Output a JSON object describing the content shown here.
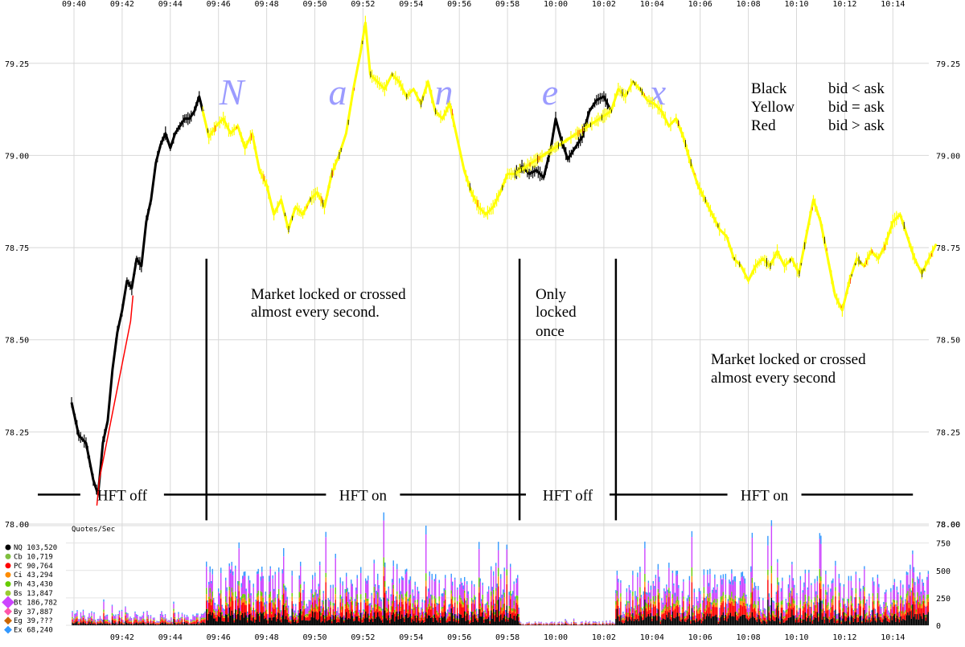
{
  "chart_data": [
    {
      "type": "line",
      "name_watermark": "Nanex",
      "x_ticks_top": [
        "09:40",
        "09:42",
        "09:44",
        "09:46",
        "09:48",
        "09:50",
        "09:52",
        "09:54",
        "09:56",
        "09:58",
        "10:00",
        "10:02",
        "10:04",
        "10:06",
        "10:08",
        "10:10",
        "10:12",
        "10:14"
      ],
      "y_ticks": [
        "79.25",
        "79.00",
        "78.75",
        "78.50",
        "78.25",
        "78.00"
      ],
      "ylim": [
        78.0,
        79.4
      ],
      "xlim_minutes": [
        -0.5,
        35.5
      ],
      "series": [
        {
          "name": "Black",
          "color": "#000000",
          "points": [
            [
              -0.1,
              78.33
            ],
            [
              0.2,
              78.24
            ],
            [
              0.5,
              78.22
            ],
            [
              0.8,
              78.12
            ],
            [
              1.0,
              78.08
            ],
            [
              1.2,
              78.22
            ],
            [
              1.4,
              78.28
            ],
            [
              1.6,
              78.42
            ],
            [
              1.8,
              78.52
            ],
            [
              2.0,
              78.58
            ],
            [
              2.2,
              78.66
            ],
            [
              2.4,
              78.64
            ],
            [
              2.6,
              78.72
            ],
            [
              2.8,
              78.7
            ],
            [
              3.0,
              78.82
            ],
            [
              3.2,
              78.88
            ],
            [
              3.4,
              78.98
            ],
            [
              3.6,
              79.03
            ],
            [
              3.8,
              79.06
            ],
            [
              4.0,
              79.02
            ],
            [
              4.2,
              79.06
            ],
            [
              4.4,
              79.08
            ],
            [
              4.6,
              79.1
            ],
            [
              4.8,
              79.1
            ],
            [
              5.0,
              79.12
            ],
            [
              5.2,
              79.16
            ],
            [
              5.35,
              79.12
            ]
          ]
        },
        {
          "name": "Black",
          "color": "#000000",
          "points": [
            [
              18.3,
              78.95
            ],
            [
              18.6,
              78.97
            ],
            [
              18.9,
              78.95
            ],
            [
              19.2,
              78.96
            ],
            [
              19.5,
              78.94
            ],
            [
              19.8,
              79.02
            ],
            [
              20.0,
              79.1
            ],
            [
              20.2,
              79.05
            ],
            [
              20.5,
              78.99
            ],
            [
              20.8,
              79.02
            ],
            [
              21.1,
              79.05
            ],
            [
              21.4,
              79.12
            ],
            [
              21.7,
              79.15
            ],
            [
              22.0,
              79.16
            ],
            [
              22.3,
              79.12
            ]
          ]
        },
        {
          "name": "Yellow",
          "color": "#ffff00",
          "points": [
            [
              5.35,
              79.12
            ],
            [
              5.6,
              79.05
            ],
            [
              5.9,
              79.08
            ],
            [
              6.2,
              79.1
            ],
            [
              6.5,
              79.06
            ],
            [
              6.8,
              79.08
            ],
            [
              7.1,
              79.02
            ],
            [
              7.4,
              79.06
            ],
            [
              7.7,
              78.96
            ],
            [
              8.0,
              78.92
            ],
            [
              8.3,
              78.84
            ],
            [
              8.6,
              78.88
            ],
            [
              8.9,
              78.8
            ],
            [
              9.2,
              78.86
            ],
            [
              9.5,
              78.84
            ],
            [
              9.8,
              78.88
            ],
            [
              10.1,
              78.9
            ],
            [
              10.4,
              78.86
            ],
            [
              10.7,
              78.95
            ],
            [
              11.0,
              79.0
            ],
            [
              11.3,
              79.06
            ],
            [
              11.6,
              79.18
            ],
            [
              11.9,
              79.28
            ],
            [
              12.1,
              79.36
            ],
            [
              12.3,
              79.22
            ],
            [
              12.6,
              79.2
            ],
            [
              12.9,
              79.18
            ],
            [
              13.2,
              79.22
            ],
            [
              13.5,
              79.2
            ],
            [
              13.8,
              79.16
            ],
            [
              14.1,
              79.18
            ],
            [
              14.4,
              79.14
            ],
            [
              14.7,
              79.2
            ],
            [
              15.0,
              79.12
            ],
            [
              15.3,
              79.1
            ],
            [
              15.6,
              79.14
            ],
            [
              15.9,
              79.05
            ],
            [
              16.2,
              78.96
            ],
            [
              16.5,
              78.9
            ],
            [
              16.8,
              78.86
            ],
            [
              17.1,
              78.84
            ],
            [
              17.4,
              78.86
            ],
            [
              17.7,
              78.9
            ],
            [
              18.0,
              78.95
            ],
            [
              18.3,
              78.95
            ],
            [
              22.3,
              79.12
            ],
            [
              22.6,
              79.18
            ],
            [
              22.9,
              79.16
            ],
            [
              23.2,
              79.2
            ],
            [
              23.5,
              79.18
            ],
            [
              23.8,
              79.15
            ],
            [
              24.1,
              79.14
            ],
            [
              24.4,
              79.12
            ],
            [
              24.7,
              79.08
            ],
            [
              25.0,
              79.1
            ],
            [
              25.3,
              79.05
            ],
            [
              25.6,
              78.98
            ],
            [
              25.9,
              78.92
            ],
            [
              26.2,
              78.88
            ],
            [
              26.5,
              78.84
            ],
            [
              26.8,
              78.8
            ],
            [
              27.1,
              78.78
            ],
            [
              27.4,
              78.72
            ],
            [
              27.7,
              78.7
            ],
            [
              28.0,
              78.66
            ],
            [
              28.3,
              78.7
            ],
            [
              28.6,
              78.72
            ],
            [
              28.9,
              78.7
            ],
            [
              29.2,
              78.74
            ],
            [
              29.5,
              78.7
            ],
            [
              29.8,
              78.72
            ],
            [
              30.1,
              78.68
            ],
            [
              30.4,
              78.78
            ],
            [
              30.7,
              78.88
            ],
            [
              31.0,
              78.82
            ],
            [
              31.3,
              78.72
            ],
            [
              31.6,
              78.62
            ],
            [
              31.9,
              78.58
            ],
            [
              32.2,
              78.66
            ],
            [
              32.5,
              78.72
            ],
            [
              32.8,
              78.7
            ],
            [
              33.1,
              78.74
            ],
            [
              33.4,
              78.72
            ],
            [
              33.7,
              78.76
            ],
            [
              34.0,
              78.82
            ],
            [
              34.3,
              78.84
            ],
            [
              34.6,
              78.78
            ],
            [
              34.9,
              78.72
            ],
            [
              35.2,
              78.68
            ],
            [
              35.5,
              78.72
            ],
            [
              35.8,
              78.76
            ]
          ]
        },
        {
          "name": "Red",
          "color": "#ff0000",
          "points": [
            [
              0.95,
              78.05
            ],
            [
              1.05,
              78.12
            ],
            [
              2.35,
              78.55
            ],
            [
              2.45,
              78.62
            ]
          ]
        }
      ],
      "legend_text": [
        {
          "label": "Black",
          "meaning": "bid < ask"
        },
        {
          "label": "Yellow",
          "meaning": "bid = ask"
        },
        {
          "label": "Red",
          "meaning": "bid > ask"
        }
      ],
      "annotations": [
        "Market locked or crossed",
        "almost every second.",
        "Only",
        "locked",
        "once",
        "Market locked or crossed",
        "almost every second"
      ],
      "regime_labels": [
        "HFT off",
        "HFT on",
        "HFT off",
        "HFT on"
      ],
      "regime_bounds_minutes": [
        -0.5,
        5.5,
        18.5,
        22.5,
        35.5
      ],
      "grid": true,
      "legend_position": "top-right"
    },
    {
      "type": "bar",
      "title": "Quotes/Sec",
      "y_ticks": [
        "750",
        "500",
        "250",
        "0"
      ],
      "ylim": [
        0,
        850
      ],
      "series_legend": [
        {
          "name": "NQ",
          "total": "103,520",
          "color": "#000000"
        },
        {
          "name": "Cb",
          "total": "10,719",
          "color": "#7fbf3f"
        },
        {
          "name": "PC",
          "total": "90,764",
          "color": "#ff0000"
        },
        {
          "name": "Ci",
          "total": "43,294",
          "color": "#ff8c00"
        },
        {
          "name": "Ph",
          "total": "43,430",
          "color": "#66cc00"
        },
        {
          "name": "Bs",
          "total": "13,847",
          "color": "#9acd32"
        },
        {
          "name": "Bt",
          "total": "186,782",
          "color": "#cc44ff"
        },
        {
          "name": "By",
          "total": "37,887",
          "color": "#ff55aa"
        },
        {
          "name": "Eg",
          "total": "39,???",
          "color": "#cc6600"
        },
        {
          "name": "Ex",
          "total": "68,240",
          "color": "#3399ff"
        }
      ],
      "segments": [
        {
          "from": -0.5,
          "to": 5.5,
          "avg_total": 80
        },
        {
          "from": 5.5,
          "to": 18.5,
          "avg_total": 330
        },
        {
          "from": 18.5,
          "to": 22.5,
          "avg_total": 25
        },
        {
          "from": 22.5,
          "to": 35.5,
          "avg_total": 320
        }
      ],
      "x_ticks_bottom": [
        "09:42",
        "09:44",
        "09:46",
        "09:48",
        "09:50",
        "09:52",
        "09:54",
        "09:56",
        "09:58",
        "10:00",
        "10:02",
        "10:04",
        "10:06",
        "10:08",
        "10:10",
        "10:12",
        "10:14"
      ]
    }
  ],
  "top_right_y_label": "78.00"
}
